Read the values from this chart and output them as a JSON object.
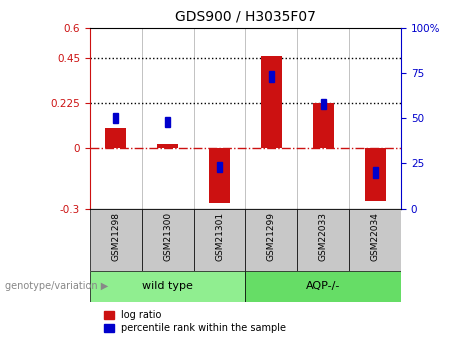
{
  "title": "GDS900 / H3035F07",
  "samples": [
    "GSM21298",
    "GSM21300",
    "GSM21301",
    "GSM21299",
    "GSM22033",
    "GSM22034"
  ],
  "log_ratios": [
    0.1,
    0.02,
    -0.27,
    0.46,
    0.225,
    -0.26
  ],
  "percentile_ranks": [
    50,
    48,
    23,
    73,
    58,
    20
  ],
  "groups": [
    {
      "label": "wild type",
      "start": 0,
      "end": 2,
      "color": "#90ee90"
    },
    {
      "label": "AQP-/-",
      "start": 3,
      "end": 5,
      "color": "#66dd66"
    }
  ],
  "ylim_left": [
    -0.3,
    0.6
  ],
  "ylim_right": [
    0,
    100
  ],
  "yticks_left": [
    -0.3,
    0,
    0.225,
    0.45,
    0.6
  ],
  "yticks_right": [
    0,
    25,
    50,
    75,
    100
  ],
  "hlines": [
    0.225,
    0.45
  ],
  "bar_color": "#cc1111",
  "dot_color": "#0000cc",
  "zero_line_color": "#cc1111",
  "background_color": "#ffffff",
  "plot_bg_color": "#ffffff",
  "tick_bg_color": "#c8c8c8",
  "legend_items": [
    "log ratio",
    "percentile rank within the sample"
  ],
  "genotype_label": "genotype/variation",
  "bar_width": 0.4,
  "dot_size": 0.05
}
